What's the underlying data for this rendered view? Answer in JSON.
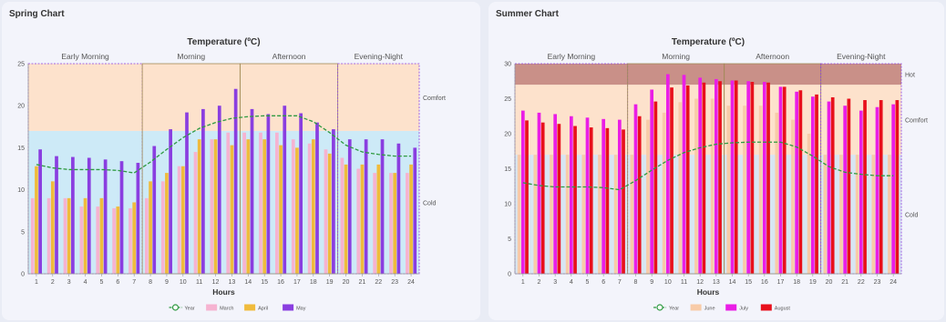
{
  "chart_data": [
    {
      "panel_title": "Spring Chart",
      "type": "bar",
      "title": "Temperature (ºC)",
      "xlabel": "Hours",
      "ylabel": "",
      "ylim": [
        0,
        25
      ],
      "yticks": [
        0,
        5,
        10,
        15,
        20,
        25
      ],
      "categories": [
        "1",
        "2",
        "3",
        "4",
        "5",
        "6",
        "7",
        "8",
        "9",
        "10",
        "11",
        "12",
        "13",
        "14",
        "15",
        "16",
        "17",
        "18",
        "19",
        "20",
        "21",
        "22",
        "23",
        "24"
      ],
      "periods": [
        {
          "label": "Early Morning",
          "from": 1,
          "to": 7
        },
        {
          "label": "Morning",
          "from": 8,
          "to": 13
        },
        {
          "label": "Afternoon",
          "from": 14,
          "to": 19
        },
        {
          "label": "Evening-Night",
          "from": 20,
          "to": 24
        }
      ],
      "zones": [
        {
          "label": "Cold",
          "from": 0,
          "to": 17,
          "color": "#cdeaf7"
        },
        {
          "label": "Comfort",
          "from": 17,
          "to": 25,
          "color": "#fde2cc"
        }
      ],
      "series": [
        {
          "name": "Year",
          "kind": "line",
          "color": "#2e9a40",
          "values": [
            13.0,
            12.6,
            12.4,
            12.4,
            12.4,
            12.3,
            12.0,
            13.3,
            14.8,
            16.2,
            17.3,
            18.0,
            18.5,
            18.7,
            18.8,
            18.8,
            18.8,
            18.1,
            16.8,
            15.3,
            14.5,
            14.2,
            14.0,
            14.0
          ]
        },
        {
          "name": "March",
          "kind": "bar",
          "color": "#f6b3d1",
          "values": [
            9.0,
            9.0,
            9.0,
            8.0,
            8.0,
            7.8,
            7.8,
            9.0,
            11.0,
            12.8,
            14.5,
            16.0,
            16.8,
            16.8,
            16.8,
            16.8,
            16.0,
            15.5,
            14.8,
            13.8,
            12.5,
            12.0,
            12.0,
            12.0
          ]
        },
        {
          "name": "April",
          "kind": "bar",
          "color": "#f0bb3c",
          "values": [
            12.8,
            11.0,
            9.0,
            9.0,
            9.0,
            8.0,
            8.5,
            11.0,
            12.0,
            12.8,
            16.0,
            16.0,
            15.3,
            16.0,
            16.0,
            15.3,
            15.0,
            16.0,
            14.3,
            13.0,
            13.0,
            13.0,
            12.0,
            13.0
          ]
        },
        {
          "name": "May",
          "kind": "bar",
          "color": "#8a3ee0",
          "values": [
            14.8,
            14.0,
            13.9,
            13.8,
            13.6,
            13.4,
            13.2,
            15.2,
            17.2,
            19.2,
            19.6,
            20.0,
            22.0,
            19.6,
            19.0,
            20.0,
            19.1,
            18.0,
            17.2,
            16.0,
            16.0,
            16.0,
            15.5,
            15.0
          ]
        }
      ]
    },
    {
      "panel_title": "Summer Chart",
      "type": "bar",
      "title": "Temperature (ºC)",
      "xlabel": "Hours",
      "ylabel": "",
      "ylim": [
        0,
        30
      ],
      "yticks": [
        0,
        5,
        10,
        15,
        20,
        25,
        30
      ],
      "categories": [
        "1",
        "2",
        "3",
        "4",
        "5",
        "6",
        "7",
        "8",
        "9",
        "10",
        "11",
        "12",
        "13",
        "14",
        "15",
        "16",
        "17",
        "18",
        "19",
        "20",
        "21",
        "22",
        "23",
        "24"
      ],
      "periods": [
        {
          "label": "Early Morning",
          "from": 1,
          "to": 7
        },
        {
          "label": "Morning",
          "from": 8,
          "to": 13
        },
        {
          "label": "Afternoon",
          "from": 14,
          "to": 19
        },
        {
          "label": "Evening-Night",
          "from": 20,
          "to": 24
        }
      ],
      "zones": [
        {
          "label": "Cold",
          "from": 0,
          "to": 17,
          "color": "#d8e6f3"
        },
        {
          "label": "Comfort",
          "from": 17,
          "to": 27,
          "color": "#fde2cc"
        },
        {
          "label": "Hot",
          "from": 27,
          "to": 30,
          "color": "#c99088"
        }
      ],
      "series": [
        {
          "name": "Year",
          "kind": "line",
          "color": "#2e9a40",
          "values": [
            13.0,
            12.6,
            12.4,
            12.4,
            12.4,
            12.3,
            12.0,
            13.3,
            14.8,
            16.2,
            17.3,
            18.0,
            18.5,
            18.7,
            18.8,
            18.8,
            18.8,
            18.1,
            16.8,
            15.3,
            14.5,
            14.2,
            14.0,
            14.0
          ]
        },
        {
          "name": "June",
          "kind": "bar",
          "color": "#f8cba8",
          "values": [
            17.0,
            17.0,
            17.0,
            17.0,
            17.0,
            17.0,
            17.0,
            17.0,
            22.0,
            23.0,
            24.5,
            25.0,
            25.0,
            24.0,
            24.0,
            24.0,
            23.0,
            22.0,
            20.0,
            17.0,
            17.0,
            17.0,
            17.0,
            17.0
          ]
        },
        {
          "name": "July",
          "kind": "bar",
          "color": "#ea1ee6",
          "values": [
            23.3,
            23.0,
            22.8,
            22.5,
            22.3,
            22.1,
            22.0,
            24.2,
            26.3,
            28.5,
            28.4,
            28.0,
            27.8,
            27.6,
            27.5,
            27.4,
            26.7,
            26.0,
            25.3,
            24.6,
            24.0,
            23.3,
            23.8,
            24.2
          ]
        },
        {
          "name": "August",
          "kind": "bar",
          "color": "#e8101c",
          "values": [
            21.9,
            21.6,
            21.4,
            21.1,
            20.9,
            20.8,
            20.6,
            22.5,
            24.6,
            26.6,
            26.9,
            27.3,
            27.5,
            27.6,
            27.4,
            27.3,
            26.7,
            26.2,
            25.6,
            25.2,
            25.0,
            24.8,
            24.8,
            24.8
          ]
        }
      ]
    }
  ]
}
